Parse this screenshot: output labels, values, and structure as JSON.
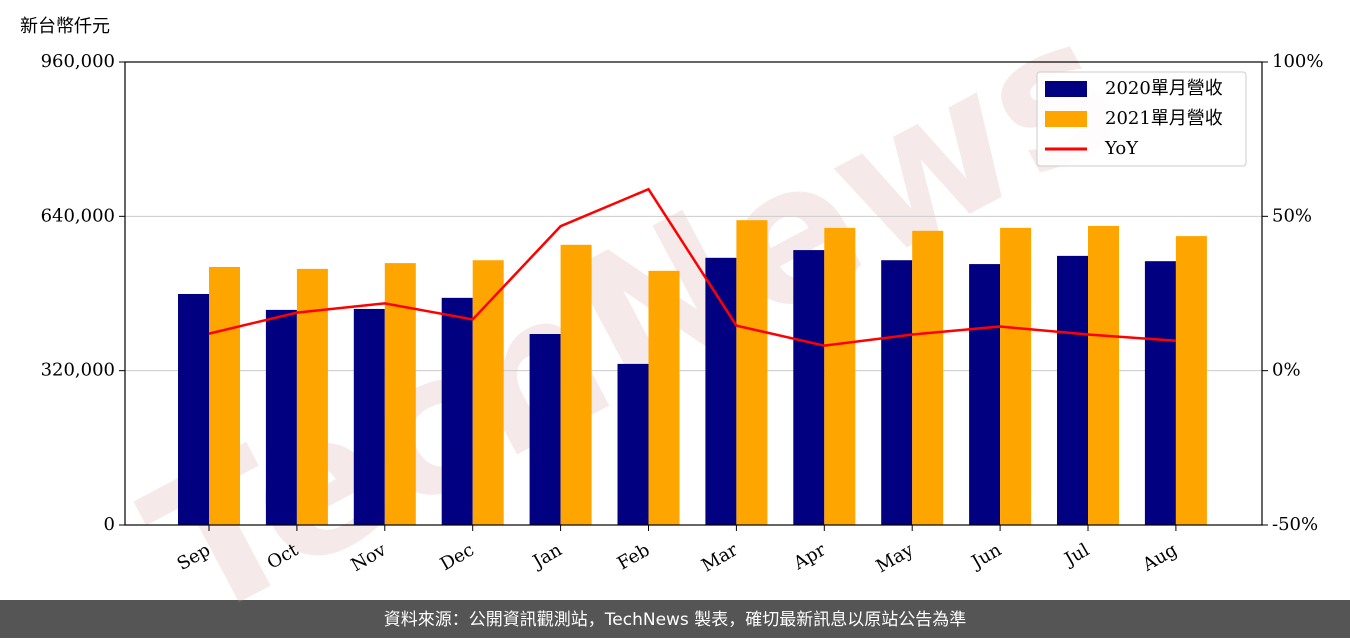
{
  "chart_data": {
    "type": "bar",
    "unit_label": "新台幣仟元",
    "watermark": "TechNews",
    "categories": [
      "Sep",
      "Oct",
      "Nov",
      "Dec",
      "Jan",
      "Feb",
      "Mar",
      "Apr",
      "May",
      "Jun",
      "Jul",
      "Aug"
    ],
    "series": [
      {
        "name": "2020單月營收",
        "color": "#000080",
        "values": [
          479000,
          446000,
          448000,
          471000,
          396000,
          334000,
          554000,
          570000,
          549000,
          541000,
          558000,
          547000
        ]
      },
      {
        "name": "2021單月營收",
        "color": "#ffa500",
        "values": [
          535000,
          531000,
          543000,
          549000,
          581000,
          527000,
          632000,
          616000,
          610000,
          616000,
          620000,
          599000
        ]
      },
      {
        "name": "YoY",
        "color": "#ff0000",
        "type": "line",
        "axis": "y2",
        "values": [
          12,
          18.8,
          21.8,
          16.6,
          46.8,
          58.8,
          14.6,
          8.1,
          11.7,
          14.3,
          11.7,
          9.7
        ]
      }
    ],
    "ylim": [
      0,
      960000
    ],
    "yticks": [
      0,
      {
        "value": 320000,
        "label": "320,000"
      },
      {
        "value": 640000,
        "label": "640,000"
      },
      {
        "value": 960000,
        "label": "960,000"
      }
    ],
    "y2lim": [
      -50,
      100
    ],
    "y2ticks": [
      {
        "value": -50,
        "label": "-50%"
      },
      {
        "value": 0,
        "label": "0%"
      },
      {
        "value": 50,
        "label": "50%"
      },
      {
        "value": 100,
        "label": "100%"
      }
    ],
    "grid": true,
    "legend": "upper right",
    "footer": "資料來源：公開資訊觀測站，TechNews 製表，確切最新訊息以原站公告為準"
  }
}
